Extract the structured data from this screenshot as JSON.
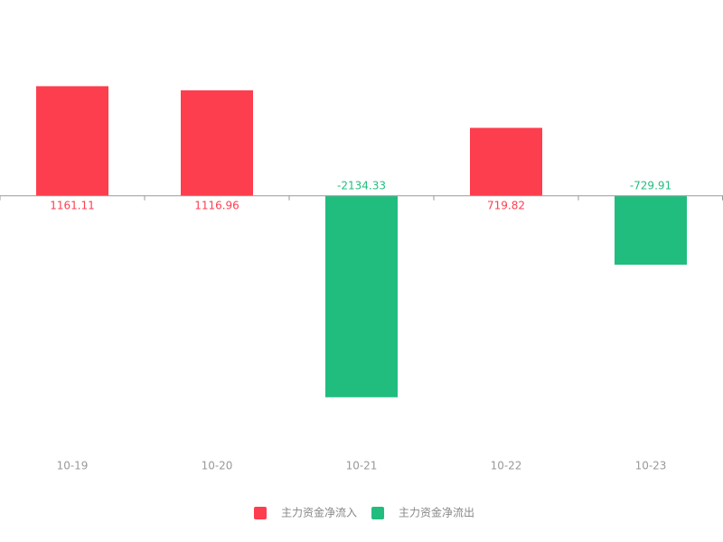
{
  "chart_data": {
    "type": "bar",
    "categories": [
      "10-19",
      "10-20",
      "10-21",
      "10-22",
      "10-23"
    ],
    "series": [
      {
        "name": "主力资金净流入",
        "color": "#fd3e4e",
        "values": [
          1161.11,
          1116.96,
          null,
          719.82,
          null
        ]
      },
      {
        "name": "主力资金净流出",
        "color": "#21bd7e",
        "values": [
          null,
          null,
          -2134.33,
          null,
          -729.91
        ]
      }
    ],
    "ylim": [
      -2500,
      1500
    ],
    "legend": "bottom"
  }
}
